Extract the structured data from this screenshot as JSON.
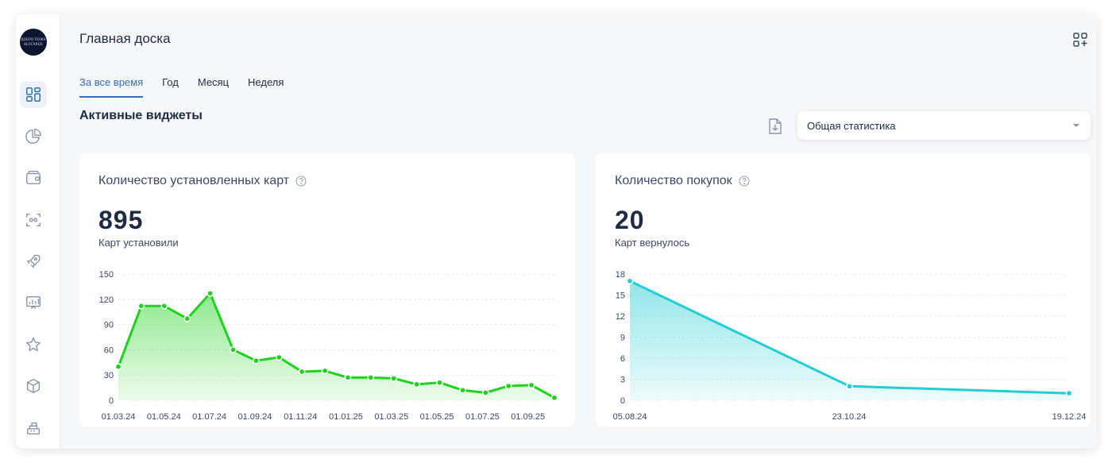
{
  "logo": {
    "line1": "ДОБРО ПОЖА",
    "line2": "BLOCARDS"
  },
  "sidebar": {
    "items": [
      {
        "icon": "dashboard-icon",
        "active": true
      },
      {
        "icon": "pie-chart-icon",
        "active": false
      },
      {
        "icon": "wallet-icon",
        "active": false
      },
      {
        "icon": "scan-icon",
        "active": false
      },
      {
        "icon": "rocket-icon",
        "active": false
      },
      {
        "icon": "presentation-chart-icon",
        "active": false
      },
      {
        "icon": "star-icon",
        "active": false
      },
      {
        "icon": "box-icon",
        "active": false
      },
      {
        "icon": "cash-register-icon",
        "active": false
      }
    ]
  },
  "header": {
    "title": "Главная доска",
    "add_widget_icon": "add-widget-icon"
  },
  "tabs": [
    {
      "label": "За все время",
      "active": true
    },
    {
      "label": "Год",
      "active": false
    },
    {
      "label": "Месяц",
      "active": false
    },
    {
      "label": "Неделя",
      "active": false
    }
  ],
  "section": {
    "title": "Активные виджеты"
  },
  "toolbar": {
    "export_icon": "download-file-icon",
    "select_value": "Общая статистика"
  },
  "colors": {
    "accent": "#2f6fb8",
    "green": "#1ed31e",
    "cyan": "#22cdd4",
    "text": "#1f2a44"
  },
  "widgets": [
    {
      "title": "Количество установленных карт",
      "value": "895",
      "subtitle": "Карт установили"
    },
    {
      "title": "Количество покупок",
      "value": "20",
      "subtitle": "Карт вернулось"
    }
  ],
  "chart_data": [
    {
      "type": "area",
      "ylim": [
        0,
        150
      ],
      "yticks": [
        0,
        30,
        60,
        90,
        120,
        150
      ],
      "xticks": [
        "01.03.24",
        "01.05.24",
        "01.07.24",
        "01.09.24",
        "01.11.24",
        "01.01.25",
        "01.03.25",
        "01.05.25",
        "01.07.25",
        "01.09.25"
      ],
      "values": [
        40,
        112,
        112,
        97,
        127,
        60,
        47,
        51,
        34,
        35,
        27,
        27,
        26,
        19,
        21,
        12,
        9,
        17,
        18,
        3
      ],
      "color": "#1ed31e",
      "grid": true
    },
    {
      "type": "area",
      "ylim": [
        0,
        18
      ],
      "yticks": [
        0,
        3,
        6,
        9,
        12,
        15,
        18
      ],
      "x": [
        "05.08.24",
        "23.10.24",
        "19.12.24"
      ],
      "values": [
        17,
        2,
        1
      ],
      "color": "#22cdd4",
      "grid": true
    }
  ]
}
